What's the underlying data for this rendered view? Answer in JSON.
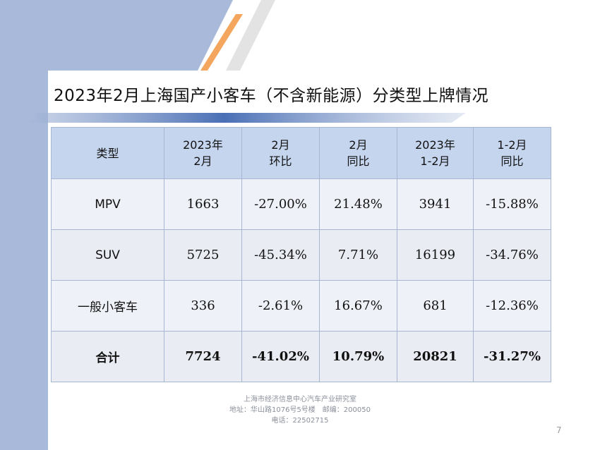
{
  "title": "2023年2月上海国产小客车（不含新能源）分类型上牌情况",
  "table": {
    "headers": [
      {
        "line1": "类型",
        "line2": ""
      },
      {
        "line1": "2023年",
        "line2": "2月"
      },
      {
        "line1": "2月",
        "line2": "环比"
      },
      {
        "line1": "2月",
        "line2": "同比"
      },
      {
        "line1": "2023年",
        "line2": "1-2月"
      },
      {
        "line1": "1-2月",
        "line2": "同比"
      }
    ],
    "rows": [
      {
        "type": "MPV",
        "feb": "1663",
        "mom": "-27.00%",
        "yoy": "21.48%",
        "ytd": "3941",
        "ytd_yoy": "-15.88%"
      },
      {
        "type": "SUV",
        "feb": "5725",
        "mom": "-45.34%",
        "yoy": "7.71%",
        "ytd": "16199",
        "ytd_yoy": "-34.76%"
      },
      {
        "type": "一般小客车",
        "feb": "336",
        "mom": "-2.61%",
        "yoy": "16.67%",
        "ytd": "681",
        "ytd_yoy": "-12.36%"
      },
      {
        "type": "合计",
        "feb": "7724",
        "mom": "-41.02%",
        "yoy": "10.79%",
        "ytd": "20821",
        "ytd_yoy": "-31.27%"
      }
    ]
  },
  "footer": {
    "line1": "上海市经济信息中心汽车产业研究室",
    "line2": "地址：华山路1076号5号楼　邮编：200050",
    "line3": "电话：22502715"
  },
  "page_number": "7",
  "colors": {
    "side_band": "#a8b9d9",
    "accent_orange": "#f4a65f",
    "accent_gray": "#d9d9d9",
    "header_fill": "#c5d5ee",
    "cell_fill": "#e9ecf3"
  }
}
